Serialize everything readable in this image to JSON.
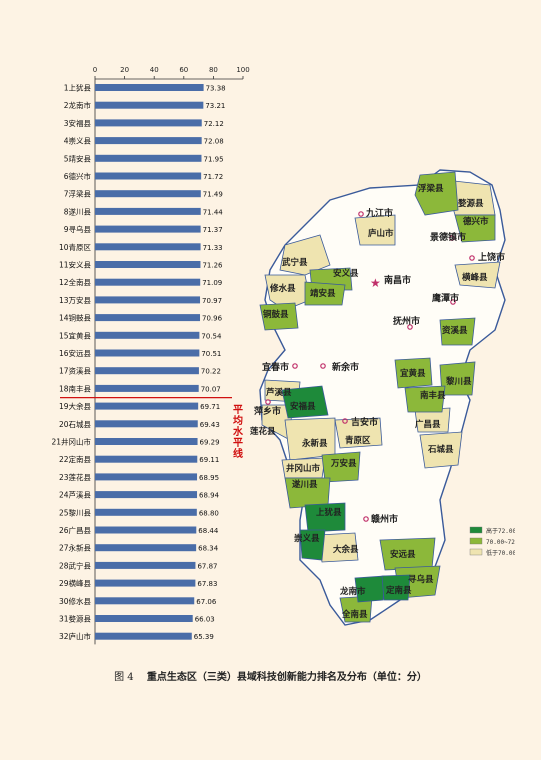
{
  "chart_data": {
    "type": "bar",
    "orientation": "horizontal",
    "x_ticks": [
      "0",
      "20",
      "40",
      "60",
      "80",
      "100"
    ],
    "xlim": [
      0,
      100
    ],
    "categories": [
      "1上犹县",
      "2龙南市",
      "3安福县",
      "4崇义县",
      "5靖安县",
      "6德兴市",
      "7浮梁县",
      "8遂川县",
      "9寻乌县",
      "10青原区",
      "11安义县",
      "12全南县",
      "13万安县",
      "14铜鼓县",
      "15宜黄县",
      "16安远县",
      "17资溪县",
      "18南丰县",
      "19大余县",
      "20石城县",
      "21井冈山市",
      "22定南县",
      "23莲花县",
      "24芦溪县",
      "25黎川县",
      "26广昌县",
      "27永新县",
      "28武宁县",
      "29横峰县",
      "30修水县",
      "31婺源县",
      "32庐山市"
    ],
    "values": [
      73.38,
      73.21,
      72.12,
      72.08,
      71.95,
      71.72,
      71.49,
      71.44,
      71.37,
      71.33,
      71.26,
      71.09,
      70.97,
      70.96,
      70.54,
      70.51,
      70.22,
      70.07,
      69.71,
      69.43,
      69.29,
      69.11,
      68.95,
      68.94,
      68.8,
      68.44,
      68.34,
      67.87,
      67.83,
      67.06,
      66.03,
      65.39
    ],
    "value_labels": [
      "73.38",
      "73.21",
      "72.12",
      "72.08",
      "71.95",
      "71.72",
      "71.49",
      "71.44",
      "71.37",
      "71.33",
      "71.26",
      "71.09",
      "70.97",
      "70.96",
      "70.54",
      "70.51",
      "70.22",
      "70.07",
      "69.71",
      "69.43",
      "69.29",
      "69.11",
      "68.95",
      "68.94",
      "68.80",
      "68.44",
      "68.34",
      "67.87",
      "67.83",
      "67.06",
      "66.03",
      "65.39"
    ],
    "average_line_after_rank": 18,
    "average_line_label": "平均水平线",
    "bar_color": "#4a6da8",
    "average_line_color": "#d01010"
  },
  "map": {
    "legend": [
      {
        "label": "高于72.00",
        "color": "#1e8a3a"
      },
      {
        "label": "70.00~72.00",
        "color": "#8cb83a"
      },
      {
        "label": "低于70.00",
        "color": "#efe4b0"
      }
    ],
    "cities": [
      "九江市",
      "南昌市",
      "景德镇市",
      "上饶市",
      "鹰潭市",
      "抚州市",
      "新余市",
      "宜春市",
      "萍乡市",
      "吉安市",
      "赣州市"
    ],
    "counties": [
      "浮梁县",
      "婺源县",
      "德兴市",
      "横峰县",
      "庐山市",
      "武宁县",
      "修水县",
      "安义县",
      "靖安县",
      "铜鼓县",
      "资溪县",
      "宜黄县",
      "黎川县",
      "南丰县",
      "广昌县",
      "石城县",
      "芦溪县",
      "安福县",
      "莲花县",
      "永新县",
      "青原区",
      "井冈山市",
      "万安县",
      "遂川县",
      "上犹县",
      "崇义县",
      "大余县",
      "安远县",
      "寻乌县",
      "定南县",
      "龙南市",
      "全南县"
    ]
  },
  "caption": {
    "figure": "图 4",
    "title": "重点生态区（三类）县域科技创新能力排名及分布（单位：分）"
  }
}
